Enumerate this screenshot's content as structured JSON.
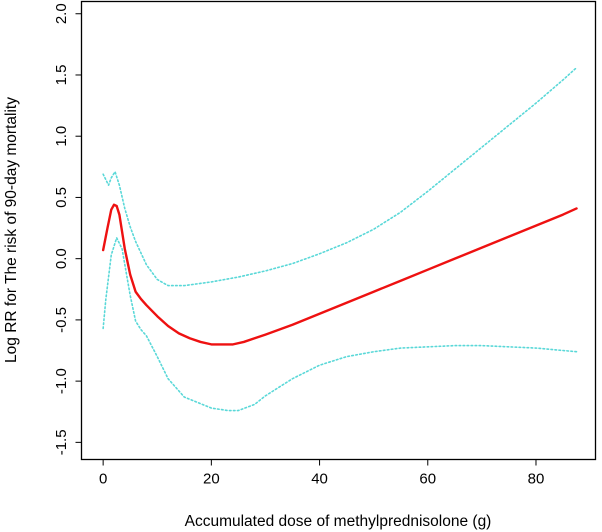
{
  "chart_data": {
    "type": "line",
    "title": "",
    "xlabel": "Accumulated dose of methylprednisolone (g)",
    "ylabel": "Log RR for The risk of 90-day mortality",
    "xlim": [
      -4,
      91
    ],
    "ylim": [
      -1.64,
      2.1
    ],
    "x_ticks": [
      0,
      20,
      40,
      60,
      80
    ],
    "x_tick_labels": [
      "0",
      "20",
      "40",
      "60",
      "80"
    ],
    "y_ticks": [
      -1.5,
      -1.0,
      -0.5,
      0.0,
      0.5,
      1.0,
      1.5,
      2.0
    ],
    "y_tick_labels": [
      "-1.5",
      "-1.0",
      "-0.5",
      "0.0",
      "0.5",
      "1.0",
      "1.5",
      "2.0"
    ],
    "grid": false,
    "legend": "none",
    "colors": {
      "estimate": "#ee1111",
      "confidence": "#5ad8d8",
      "axis": "#000000"
    },
    "series": [
      {
        "name": "Estimate",
        "style": "solid",
        "x": [
          0,
          0.8,
          1.5,
          2.0,
          2.5,
          3.0,
          3.5,
          4.0,
          5,
          6,
          7,
          8,
          10,
          12,
          14,
          16,
          18,
          20,
          22,
          24,
          26,
          28,
          30,
          35,
          40,
          45,
          50,
          55,
          60,
          65,
          70,
          75,
          80,
          85,
          87.5
        ],
        "y": [
          0.07,
          0.25,
          0.4,
          0.44,
          0.43,
          0.36,
          0.22,
          0.08,
          -0.13,
          -0.27,
          -0.33,
          -0.38,
          -0.47,
          -0.55,
          -0.61,
          -0.65,
          -0.68,
          -0.7,
          -0.7,
          -0.7,
          -0.68,
          -0.65,
          -0.62,
          -0.54,
          -0.45,
          -0.36,
          -0.27,
          -0.18,
          -0.09,
          0.0,
          0.09,
          0.18,
          0.27,
          0.36,
          0.41
        ]
      },
      {
        "name": "Upper 95% CI",
        "style": "dotted",
        "x": [
          0,
          1,
          1.5,
          2.2,
          3,
          4,
          5,
          6,
          8,
          10,
          12,
          15,
          20,
          25,
          30,
          35,
          40,
          45,
          50,
          55,
          60,
          65,
          70,
          75,
          80,
          85,
          87.5
        ],
        "y": [
          0.69,
          0.6,
          0.66,
          0.71,
          0.6,
          0.41,
          0.26,
          0.14,
          -0.05,
          -0.17,
          -0.22,
          -0.22,
          -0.19,
          -0.15,
          -0.1,
          -0.04,
          0.04,
          0.13,
          0.24,
          0.38,
          0.55,
          0.73,
          0.91,
          1.09,
          1.27,
          1.46,
          1.56
        ]
      },
      {
        "name": "Lower 95% CI",
        "style": "dotted",
        "x": [
          0,
          0.5,
          1.5,
          2.5,
          3.5,
          5,
          6,
          7,
          8,
          10,
          12,
          15,
          20,
          23,
          25,
          28,
          30,
          35,
          40,
          45,
          50,
          55,
          60,
          65,
          70,
          75,
          80,
          85,
          87.5
        ],
        "y": [
          -0.57,
          -0.33,
          0.03,
          0.17,
          0.08,
          -0.3,
          -0.51,
          -0.58,
          -0.63,
          -0.8,
          -0.98,
          -1.13,
          -1.22,
          -1.24,
          -1.24,
          -1.19,
          -1.12,
          -0.98,
          -0.87,
          -0.8,
          -0.76,
          -0.73,
          -0.72,
          -0.71,
          -0.71,
          -0.72,
          -0.73,
          -0.75,
          -0.76
        ]
      }
    ]
  }
}
